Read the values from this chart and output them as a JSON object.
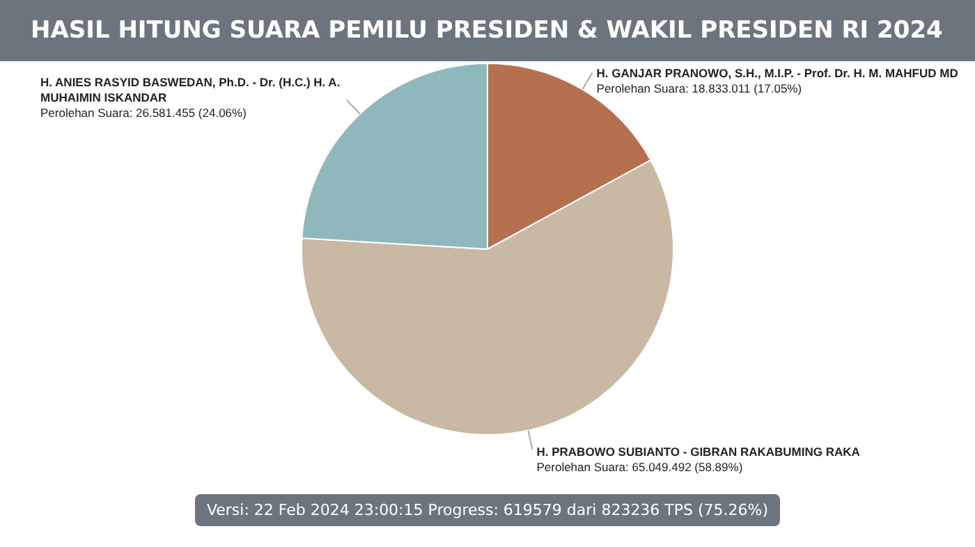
{
  "chart_data": {
    "type": "pie",
    "title": "HASIL HITUNG SUARA PEMILU PRESIDEN & WAKIL PRESIDEN RI 2024",
    "categories": [
      "H. GANJAR PRANOWO, S.H., M.I.P. - Prof. Dr. H. M. MAHFUD MD",
      "H. PRABOWO SUBIANTO - GIBRAN RAKABUMING RAKA",
      "H. ANIES RASYID BASWEDAN, Ph.D. - Dr. (H.C.) H. A. MUHAIMIN ISKANDAR"
    ],
    "values": [
      18833011,
      65049492,
      26581455
    ],
    "colors": [
      "#b5714f",
      "#c9b8a4",
      "#8fb8bd"
    ],
    "value_labels": [
      "Perolehan Suara: 18.833.011 (17.05%)",
      "Perolehan Suara: 65.049.492 (58.89%)",
      "Perolehan Suara: 26.581.455 (24.06%)"
    ],
    "annotations": [
      "Versi: 22 Feb 2024 23:00:15 Progress: 619579 dari 823236 TPS (75.26%)"
    ]
  }
}
